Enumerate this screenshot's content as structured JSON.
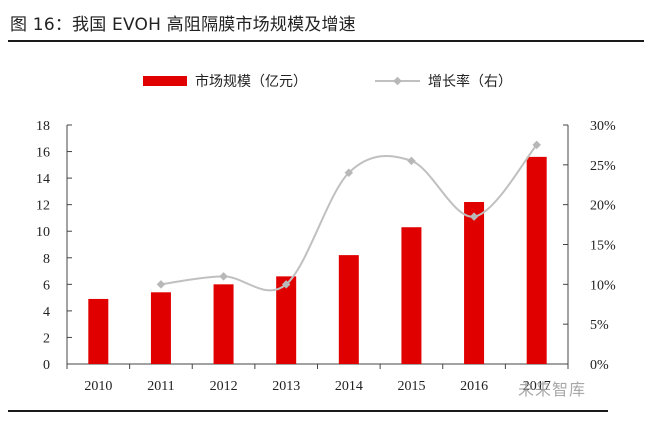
{
  "page": {
    "title": "图 16：我国 EVOH 高阻隔膜市场规模及增速",
    "watermark": "未来智库"
  },
  "chart_data": {
    "type": "bar",
    "title": "图 16：我国 EVOH 高阻隔膜市场规模及增速",
    "categories": [
      "2010",
      "2011",
      "2012",
      "2013",
      "2014",
      "2015",
      "2016",
      "2017"
    ],
    "series": [
      {
        "name": "市场规模（亿元）",
        "type": "bar",
        "axis": "left",
        "color": "#e00000",
        "values": [
          4.9,
          5.4,
          6.0,
          6.6,
          8.2,
          10.3,
          12.2,
          15.6
        ]
      },
      {
        "name": "增长率（右）",
        "type": "line",
        "axis": "right",
        "color": "#c0c0c0",
        "values": [
          null,
          10.0,
          11.0,
          10.0,
          24.0,
          25.5,
          18.5,
          27.5
        ]
      }
    ],
    "y_left": {
      "min": 0,
      "max": 18,
      "step": 2,
      "ticks": [
        "0",
        "2",
        "4",
        "6",
        "8",
        "10",
        "12",
        "14",
        "16",
        "18"
      ]
    },
    "y_right": {
      "min": 0,
      "max": 30,
      "step": 5,
      "ticks": [
        "0%",
        "5%",
        "10%",
        "15%",
        "20%",
        "25%",
        "30%"
      ]
    },
    "legend": "top-center",
    "grid": false
  }
}
